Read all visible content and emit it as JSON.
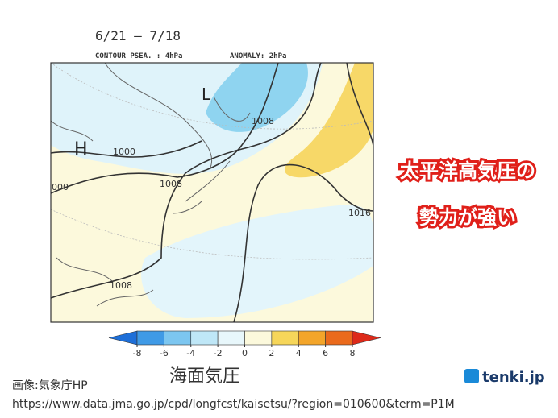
{
  "header": {
    "period": "6/21 – 7/18",
    "contour": "CONTOUR PSEA. : 4hPa",
    "anomaly": "ANOMALY: 2hPa"
  },
  "map": {
    "labels": [
      "1008",
      "1000",
      "000",
      "1008",
      "1016",
      "1008",
      "H",
      "L"
    ]
  },
  "callout": {
    "line1": "太平洋高気圧の",
    "line2": "勢力が強い"
  },
  "legend": {
    "title": "海面気圧",
    "ticks": [
      -8,
      -6,
      -4,
      -2,
      0,
      2,
      4,
      6,
      8
    ],
    "colors": [
      "#1e6fd8",
      "#3f9ae6",
      "#7cc6f0",
      "#bfe7f7",
      "#e8f7fb",
      "#fcf9dc",
      "#f6d65a",
      "#f3a52a",
      "#ea6a1c",
      "#dd2a1a"
    ]
  },
  "footer": {
    "source": "画像:気象庁HP",
    "url": "https://www.data.jma.go.jp/cpd/longfcst/kaisetsu/?region=010600&term=P1M",
    "brand": "tenki.jp"
  }
}
